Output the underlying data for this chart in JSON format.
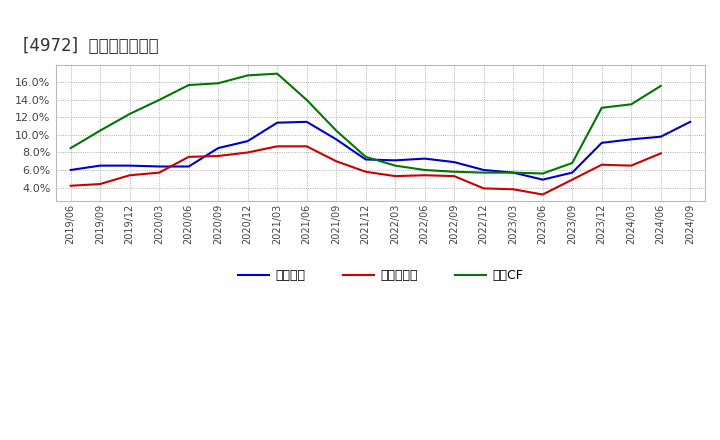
{
  "title": "[4972]  マージンの推移",
  "x_labels": [
    "2019/06",
    "2019/09",
    "2019/12",
    "2020/03",
    "2020/06",
    "2020/09",
    "2020/12",
    "2021/03",
    "2021/06",
    "2021/09",
    "2021/12",
    "2022/03",
    "2022/06",
    "2022/09",
    "2022/12",
    "2023/03",
    "2023/06",
    "2023/09",
    "2023/12",
    "2024/03",
    "2024/06",
    "2024/09"
  ],
  "series": {
    "経常利益": {
      "color": "#0000cc",
      "values": [
        6.0,
        6.5,
        6.5,
        6.4,
        6.4,
        8.5,
        9.3,
        11.4,
        11.5,
        9.5,
        7.2,
        7.1,
        7.3,
        6.9,
        6.0,
        5.7,
        4.9,
        5.7,
        9.1,
        9.5,
        9.8,
        11.5
      ]
    },
    "当期純利益": {
      "color": "#cc0000",
      "values": [
        4.2,
        4.4,
        5.4,
        5.7,
        7.5,
        7.6,
        8.0,
        8.7,
        8.7,
        7.0,
        5.8,
        5.3,
        5.4,
        5.3,
        3.9,
        3.8,
        3.2,
        4.9,
        6.6,
        6.5,
        7.9,
        null
      ]
    },
    "営業CF": {
      "color": "#007700",
      "values": [
        8.5,
        10.5,
        12.4,
        14.0,
        15.7,
        15.9,
        16.8,
        17.0,
        14.0,
        10.5,
        7.5,
        6.5,
        6.0,
        5.8,
        5.7,
        5.7,
        5.6,
        6.8,
        13.1,
        13.5,
        15.6,
        null
      ]
    }
  },
  "ylim": [
    2.5,
    18.0
  ],
  "yticks": [
    4.0,
    6.0,
    8.0,
    10.0,
    12.0,
    14.0,
    16.0
  ],
  "background_color": "#ffffff",
  "plot_bg_color": "#ffffff",
  "title_fontsize": 12,
  "legend_labels": [
    "経常利益",
    "当期純利益",
    "営業CF"
  ]
}
